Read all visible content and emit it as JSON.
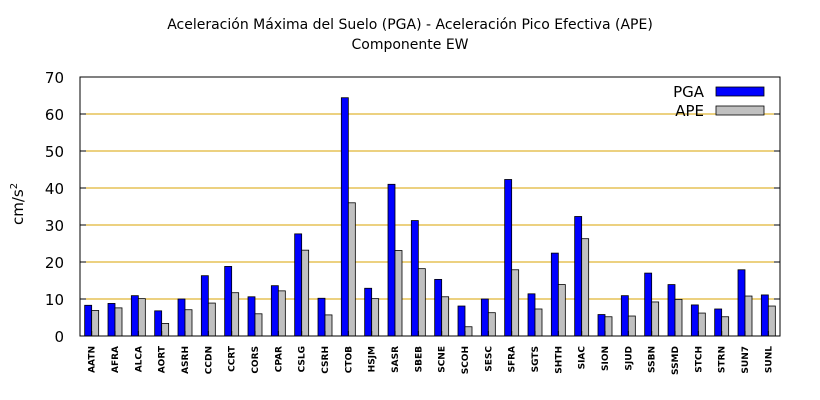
{
  "chart_data": {
    "type": "bar",
    "title": "Aceleración Máxima del Suelo (PGA) -  Aceleración Pico Efectiva (APE)",
    "subtitle": "Componente EW",
    "ylabel": "cm/s2",
    "xlabel": "",
    "ylim": [
      0,
      70
    ],
    "yticks": [
      0,
      10,
      20,
      30,
      40,
      50,
      60,
      70
    ],
    "grid": "horizontal",
    "legend_position": "top-right",
    "categories": [
      "AATN",
      "AFRA",
      "ALCA",
      "AORT",
      "ASRH",
      "CCDN",
      "CCRT",
      "CORS",
      "CPAR",
      "CSLG",
      "CSRH",
      "CTOB",
      "HSJM",
      "SASR",
      "SBEB",
      "SCNE",
      "SCOH",
      "SESC",
      "SFRA",
      "SGTS",
      "SHTH",
      "SIAC",
      "SION",
      "SJUD",
      "SSBN",
      "SSMD",
      "STCH",
      "STRN",
      "SUN7",
      "SUNL"
    ],
    "series": [
      {
        "name": "PGA",
        "color": "#0000ff",
        "values": [
          8.3,
          8.8,
          10.9,
          6.8,
          10.0,
          16.3,
          18.8,
          10.6,
          13.6,
          27.6,
          10.2,
          64.4,
          12.9,
          41.0,
          31.2,
          15.3,
          8.1,
          10.0,
          42.3,
          11.4,
          22.4,
          32.3,
          5.8,
          10.9,
          17.0,
          13.9,
          8.4,
          7.3,
          17.9,
          11.1
        ]
      },
      {
        "name": "APE",
        "color": "#c0c0c0",
        "values": [
          6.9,
          7.6,
          10.1,
          3.4,
          7.1,
          8.9,
          11.7,
          6.0,
          12.2,
          23.2,
          5.7,
          36.0,
          10.1,
          23.1,
          18.2,
          10.6,
          2.5,
          6.3,
          17.9,
          7.3,
          13.9,
          26.3,
          5.2,
          5.4,
          9.2,
          9.9,
          6.2,
          5.2,
          10.8,
          8.1
        ]
      }
    ]
  }
}
